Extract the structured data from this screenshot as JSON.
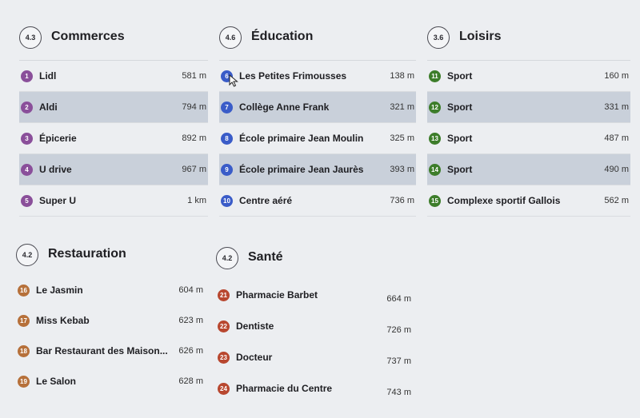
{
  "commerces": {
    "score": "4.3",
    "title": "Commerces",
    "items": [
      {
        "num": "1",
        "name": "Lidl",
        "dist": "581 m"
      },
      {
        "num": "2",
        "name": "Aldi",
        "dist": "794 m"
      },
      {
        "num": "3",
        "name": "Épicerie",
        "dist": "892 m"
      },
      {
        "num": "4",
        "name": "U drive",
        "dist": "967 m"
      },
      {
        "num": "5",
        "name": "Super U",
        "dist": "1 km"
      }
    ]
  },
  "education": {
    "score": "4.6",
    "title": "Éducation",
    "items": [
      {
        "num": "6",
        "name": "Les Petites Frimousses",
        "dist": "138 m"
      },
      {
        "num": "7",
        "name": "Collège Anne Frank",
        "dist": "321 m"
      },
      {
        "num": "8",
        "name": "École primaire Jean Moulin",
        "dist": "325 m"
      },
      {
        "num": "9",
        "name": "École primaire Jean Jaurès",
        "dist": "393 m"
      },
      {
        "num": "10",
        "name": "Centre aéré",
        "dist": "736 m"
      }
    ]
  },
  "loisirs": {
    "score": "3.6",
    "title": "Loisirs",
    "items": [
      {
        "num": "11",
        "name": "Sport",
        "dist": "160 m"
      },
      {
        "num": "12",
        "name": "Sport",
        "dist": "331 m"
      },
      {
        "num": "13",
        "name": "Sport",
        "dist": "487 m"
      },
      {
        "num": "14",
        "name": "Sport",
        "dist": "490 m"
      },
      {
        "num": "15",
        "name": "Complexe sportif Gallois",
        "dist": "562 m"
      }
    ]
  },
  "restauration": {
    "score": "4.2",
    "title": "Restauration",
    "items": [
      {
        "num": "16",
        "name": "Le Jasmin",
        "dist": "604 m"
      },
      {
        "num": "17",
        "name": "Miss Kebab",
        "dist": "623 m"
      },
      {
        "num": "18",
        "name": "Bar Restaurant des Maison...",
        "dist": "626 m"
      },
      {
        "num": "19",
        "name": "Le Salon",
        "dist": "628 m"
      }
    ]
  },
  "sante": {
    "score": "4.2",
    "title": "Santé",
    "items": [
      {
        "num": "21",
        "name": "Pharmacie Barbet",
        "dist": "664 m"
      },
      {
        "num": "22",
        "name": "Dentiste",
        "dist": "726 m"
      },
      {
        "num": "23",
        "name": "Docteur",
        "dist": "737 m"
      },
      {
        "num": "24",
        "name": "Pharmacie du Centre",
        "dist": "743 m"
      }
    ]
  },
  "colors": {
    "commerces": "#8a4f9a",
    "education": "#3a5cc8",
    "loisirs": "#3d7d2a",
    "restauration": "#b6703a",
    "sante": "#b8472f",
    "row_highlight": "#c9d0da"
  }
}
